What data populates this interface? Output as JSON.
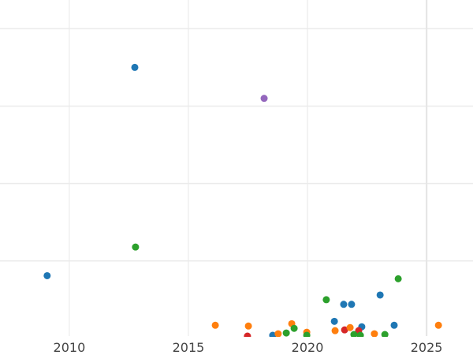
{
  "chart_data": {
    "type": "scatter",
    "title": "",
    "xlabel": "",
    "ylabel": "",
    "xlim": [
      2007.09,
      2026.95
    ],
    "ylim": [
      0.02,
      4.37
    ],
    "x_ticks": [
      2010,
      2015,
      2020,
      2025
    ],
    "x_tick_labels": [
      "2010",
      "2015",
      "2020",
      "2025"
    ],
    "y_gridlines": [
      1,
      2,
      3,
      4
    ],
    "y_tick_labels": [],
    "grid": true,
    "legend": null,
    "colors": {
      "blue": "#1f77b4",
      "orange": "#ff7f0e",
      "green": "#2ca02c",
      "red": "#d62728",
      "purple": "#9467bd"
    },
    "points": [
      {
        "x": 2012.75,
        "y": 3.5,
        "color": "blue"
      },
      {
        "x": 2018.18,
        "y": 3.1,
        "color": "purple"
      },
      {
        "x": 2012.78,
        "y": 1.18,
        "color": "green"
      },
      {
        "x": 2009.07,
        "y": 0.81,
        "color": "blue"
      },
      {
        "x": 2016.13,
        "y": 0.17,
        "color": "orange"
      },
      {
        "x": 2017.52,
        "y": 0.16,
        "color": "orange"
      },
      {
        "x": 2017.48,
        "y": 0.03,
        "color": "red"
      },
      {
        "x": 2018.54,
        "y": 0.04,
        "color": "blue"
      },
      {
        "x": 2018.77,
        "y": 0.06,
        "color": "orange"
      },
      {
        "x": 2019.11,
        "y": 0.07,
        "color": "green"
      },
      {
        "x": 2019.34,
        "y": 0.19,
        "color": "orange"
      },
      {
        "x": 2019.44,
        "y": 0.13,
        "color": "green"
      },
      {
        "x": 2019.97,
        "y": 0.08,
        "color": "orange"
      },
      {
        "x": 2019.97,
        "y": 0.04,
        "color": "green"
      },
      {
        "x": 2020.79,
        "y": 0.5,
        "color": "green"
      },
      {
        "x": 2021.52,
        "y": 0.44,
        "color": "blue"
      },
      {
        "x": 2021.85,
        "y": 0.44,
        "color": "blue"
      },
      {
        "x": 2021.13,
        "y": 0.22,
        "color": "blue"
      },
      {
        "x": 2021.16,
        "y": 0.1,
        "color": "orange"
      },
      {
        "x": 2021.56,
        "y": 0.11,
        "color": "red"
      },
      {
        "x": 2021.79,
        "y": 0.14,
        "color": "orange"
      },
      {
        "x": 2022.28,
        "y": 0.15,
        "color": "blue"
      },
      {
        "x": 2022.15,
        "y": 0.1,
        "color": "red"
      },
      {
        "x": 2021.95,
        "y": 0.05,
        "color": "green"
      },
      {
        "x": 2022.22,
        "y": 0.04,
        "color": "green"
      },
      {
        "x": 2022.81,
        "y": 0.06,
        "color": "orange"
      },
      {
        "x": 2023.25,
        "y": 0.05,
        "color": "green"
      },
      {
        "x": 2023.05,
        "y": 0.56,
        "color": "blue"
      },
      {
        "x": 2023.64,
        "y": 0.17,
        "color": "blue"
      },
      {
        "x": 2023.81,
        "y": 0.77,
        "color": "green"
      },
      {
        "x": 2025.5,
        "y": 0.17,
        "color": "orange"
      }
    ]
  }
}
